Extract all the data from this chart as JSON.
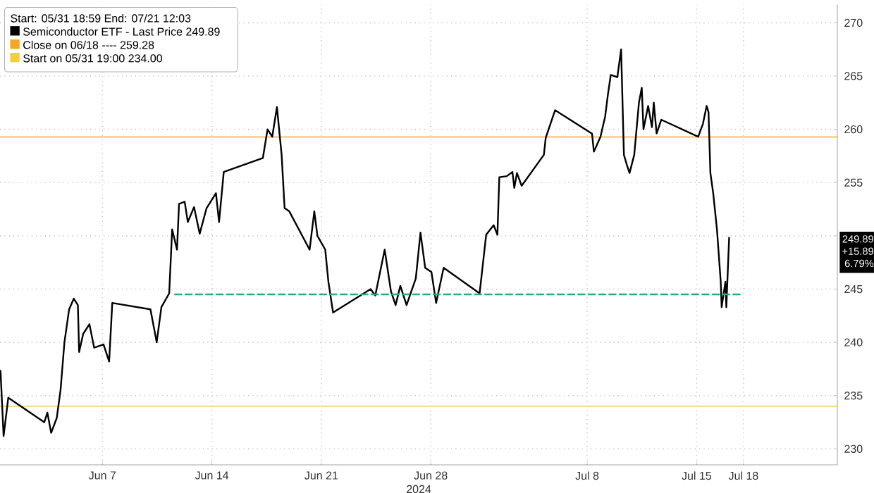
{
  "chart_data": {
    "type": "line",
    "legend_title": "Start: 05/31 18:59 End: 07/21 12:03",
    "xlabel": "2024",
    "xlim": [
      "2024-05-31T10:48",
      "2024-07-24"
    ],
    "xticks": [
      {
        "value": "2024-06-07",
        "label": "Jun 7"
      },
      {
        "value": "2024-06-14",
        "label": "Jun 14"
      },
      {
        "value": "2024-06-21",
        "label": "Jun 21"
      },
      {
        "value": "2024-06-28",
        "label": "Jun 28"
      },
      {
        "value": "2024-07-08",
        "label": "Jul 8"
      },
      {
        "value": "2024-07-15",
        "label": "Jul 15"
      },
      {
        "value": "2024-07-18",
        "label": "Jul 18"
      }
    ],
    "ylim": [
      228.5,
      271.7
    ],
    "yticks": [
      230,
      235,
      240,
      245,
      {
        "value": 250,
        "label": null
      },
      255,
      260,
      265,
      270
    ],
    "grid": true,
    "legend": "top left",
    "series": [
      {
        "name": "Semiconductor ETF - Last Price 249.89",
        "color": "#000000",
        "x": [
          "2024-05-31T11:31",
          "2024-05-31T16:19",
          "2024-05-31T23:31",
          "2024-06-03T06:43",
          "2024-06-03T11:31",
          "2024-06-03T17:17",
          "2024-06-04T01:55",
          "2024-06-04T07:41",
          "2024-06-04T13:41",
          "2024-06-04T20:53",
          "2024-06-05T04:05",
          "2024-06-05T10:19",
          "2024-06-05T12:14",
          "2024-06-05T18:29",
          "2024-06-06T04:05",
          "2024-06-06T11:17",
          "2024-06-07T01:41",
          "2024-06-07T10:19",
          "2024-06-07T15:07",
          "2024-06-10T01:41",
          "2024-06-10T11:17",
          "2024-06-10T18:29",
          "2024-06-11T06:29",
          "2024-06-11T11:02",
          "2024-06-11T18:29",
          "2024-06-11T21:36",
          "2024-06-12T06:14",
          "2024-06-12T11:02",
          "2024-06-12T20:38",
          "2024-06-13T05:17",
          "2024-06-13T15:50",
          "2024-06-14T06:14",
          "2024-06-14T11:02",
          "2024-06-14T18:14",
          "2024-06-17T06:14",
          "2024-06-17T13:26",
          "2024-06-17T20:38",
          "2024-06-18T03:50",
          "2024-06-18T11:02",
          "2024-06-18T15:36",
          "2024-06-18T22:48",
          "2024-06-20T06:00",
          "2024-06-20T13:12",
          "2024-06-20T18:00",
          "2024-06-21T06:00",
          "2024-06-21T10:48",
          "2024-06-21T18:00",
          "2024-06-24T03:36",
          "2024-06-24T10:48",
          "2024-06-25T01:12",
          "2024-06-25T10:48",
          "2024-06-25T18:00",
          "2024-06-26T01:12",
          "2024-06-26T10:48",
          "2024-06-27T00:58",
          "2024-06-27T08:10",
          "2024-06-27T15:22",
          "2024-06-28T00:58",
          "2024-06-28T08:10",
          "2024-06-28T19:41",
          "2024-07-01T02:53",
          "2024-07-01T12:58",
          "2024-07-02T00:29",
          "2024-07-02T06:14",
          "2024-07-02T09:07",
          "2024-07-02T20:38",
          "2024-07-03T05:17",
          "2024-07-03T08:10",
          "2024-07-03T12:14",
          "2024-07-03T19:26",
          "2024-07-05T05:31",
          "2024-07-05T08:24",
          "2024-07-05T22:48",
          "2024-07-08T07:26",
          "2024-07-08T10:19",
          "2024-07-08T20:24",
          "2024-07-09T03:36",
          "2024-07-09T07:55",
          "2024-07-09T12:14",
          "2024-07-09T22:19",
          "2024-07-10T04:05",
          "2024-07-10T08:24",
          "2024-07-10T12:43",
          "2024-07-10T17:02",
          "2024-07-11T00:14",
          "2024-07-11T07:26",
          "2024-07-11T11:46",
          "2024-07-11T14:24",
          "2024-07-11T21:36",
          "2024-07-12T03:22",
          "2024-07-12T06:14",
          "2024-07-12T10:34",
          "2024-07-12T17:46",
          "2024-07-15T02:24",
          "2024-07-15T09:36",
          "2024-07-15T15:22",
          "2024-07-15T18:14",
          "2024-07-15T21:07",
          "2024-07-16T01:26",
          "2024-07-16T07:12",
          "2024-07-16T12:58",
          "2024-07-16T14:24",
          "2024-07-16T20:10",
          "2024-07-16T21:36",
          "2024-07-17T01:55"
        ],
        "values": [
          237.4,
          231.2,
          234.8,
          232.5,
          233.4,
          231.5,
          232.9,
          235.5,
          240.0,
          243.1,
          244.1,
          243.5,
          239.1,
          240.8,
          241.7,
          239.5,
          239.8,
          238.2,
          243.7,
          243.1,
          240.0,
          243.3,
          244.6,
          250.6,
          248.7,
          253.0,
          253.2,
          251.3,
          252.7,
          250.2,
          252.6,
          254.0,
          251.3,
          256.0,
          257.3,
          260.0,
          259.3,
          262.1,
          257.6,
          252.6,
          252.3,
          248.7,
          252.3,
          250.0,
          248.7,
          245.7,
          242.8,
          245.0,
          244.4,
          248.7,
          244.8,
          243.5,
          245.3,
          243.5,
          246.0,
          250.3,
          247.0,
          246.6,
          243.7,
          247.0,
          244.6,
          250.1,
          251.0,
          250.1,
          255.5,
          255.6,
          256.0,
          254.5,
          255.9,
          254.7,
          257.6,
          259.2,
          261.8,
          259.6,
          257.9,
          259.3,
          261.2,
          263.3,
          265.1,
          264.9,
          267.5,
          257.6,
          256.7,
          255.9,
          257.6,
          262.5,
          263.9,
          260.0,
          262.2,
          260.2,
          262.5,
          259.6,
          260.9,
          259.3,
          260.5,
          262.2,
          261.6,
          255.9,
          254.0,
          250.6,
          245.7,
          243.3,
          245.7,
          243.3,
          249.89
        ]
      },
      {
        "color": "#1fae8a",
        "line_style": "dashed",
        "x": [
          "2024-06-11T09:36",
          "2024-07-17T21:36"
        ],
        "values": [
          244.5,
          244.5
        ]
      }
    ],
    "ref_lines": [
      {
        "axis": "y",
        "value": 259.28,
        "label": "Close on 06/18 ---- 259.28",
        "color": "#f5a623"
      },
      {
        "axis": "y",
        "value": 234.0,
        "label": "Start on 05/31 19:00 234.00",
        "color": "#f2cf3c"
      }
    ],
    "annotations": [
      "249.89",
      "+15.89",
      "6.79%"
    ]
  }
}
